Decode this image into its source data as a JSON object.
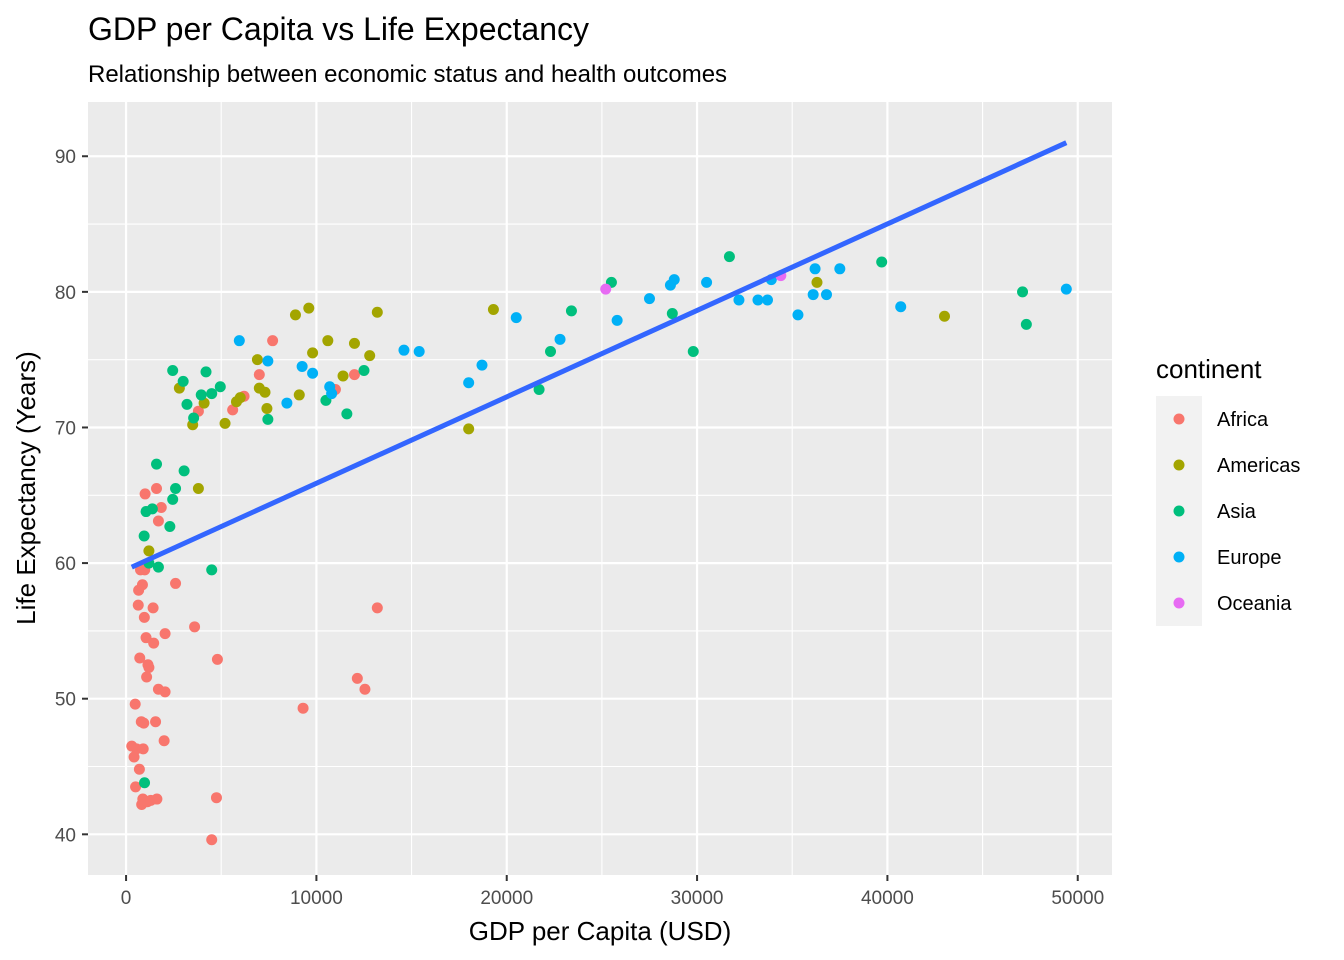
{
  "chart_data": {
    "type": "scatter",
    "title": "GDP per Capita vs Life Expectancy",
    "subtitle": "Relationship between economic status and health outcomes",
    "xlabel": "GDP per Capita (USD)",
    "ylabel": "Life Expectancy (Years)",
    "xlim": [
      -2000,
      51800
    ],
    "ylim": [
      37,
      94
    ],
    "x_ticks": [
      0,
      10000,
      20000,
      30000,
      40000,
      50000
    ],
    "y_ticks": [
      40,
      50,
      60,
      70,
      80,
      90
    ],
    "grid": true,
    "legend": {
      "title": "continent",
      "placement": "right",
      "entries": [
        {
          "name": "Africa",
          "color": "#F8766D"
        },
        {
          "name": "Americas",
          "color": "#A3A500"
        },
        {
          "name": "Asia",
          "color": "#00BF7D"
        },
        {
          "name": "Europe",
          "color": "#00B0F6"
        },
        {
          "name": "Oceania",
          "color": "#E76BF3"
        }
      ]
    },
    "series": [
      {
        "name": "Africa",
        "color": "#F8766D",
        "points": [
          [
            300,
            46.5
          ],
          [
            420,
            45.7
          ],
          [
            480,
            49.6
          ],
          [
            500,
            43.5
          ],
          [
            550,
            46.3
          ],
          [
            640,
            56.9
          ],
          [
            660,
            58.0
          ],
          [
            700,
            44.8
          ],
          [
            720,
            53.0
          ],
          [
            760,
            59.5
          ],
          [
            800,
            48.3
          ],
          [
            820,
            42.2
          ],
          [
            860,
            58.4
          ],
          [
            880,
            42.6
          ],
          [
            900,
            46.3
          ],
          [
            930,
            48.2
          ],
          [
            960,
            56.0
          ],
          [
            980,
            59.5
          ],
          [
            1000,
            65.1
          ],
          [
            1050,
            54.5
          ],
          [
            1080,
            51.6
          ],
          [
            1120,
            42.4
          ],
          [
            1150,
            52.5
          ],
          [
            1200,
            52.3
          ],
          [
            1300,
            42.5
          ],
          [
            1420,
            56.7
          ],
          [
            1450,
            54.1
          ],
          [
            1550,
            48.3
          ],
          [
            1600,
            65.5
          ],
          [
            1620,
            42.6
          ],
          [
            1700,
            50.7
          ],
          [
            1700,
            63.1
          ],
          [
            1850,
            64.1
          ],
          [
            2000,
            46.9
          ],
          [
            2050,
            54.8
          ],
          [
            2050,
            50.5
          ],
          [
            2600,
            58.5
          ],
          [
            3600,
            55.3
          ],
          [
            3800,
            71.2
          ],
          [
            4500,
            39.6
          ],
          [
            4750,
            42.7
          ],
          [
            4800,
            52.9
          ],
          [
            5600,
            71.3
          ],
          [
            6200,
            72.3
          ],
          [
            7000,
            73.9
          ],
          [
            7700,
            76.4
          ],
          [
            9300,
            49.3
          ],
          [
            11000,
            72.8
          ],
          [
            12000,
            73.9
          ],
          [
            12150,
            51.5
          ],
          [
            12550,
            50.7
          ],
          [
            13200,
            56.7
          ]
        ]
      },
      {
        "name": "Americas",
        "color": "#A3A500",
        "points": [
          [
            1200,
            60.9
          ],
          [
            2800,
            72.9
          ],
          [
            3500,
            70.2
          ],
          [
            3800,
            65.5
          ],
          [
            4100,
            71.8
          ],
          [
            5200,
            70.3
          ],
          [
            5800,
            71.9
          ],
          [
            6000,
            72.2
          ],
          [
            6900,
            75.0
          ],
          [
            7000,
            72.9
          ],
          [
            7300,
            72.6
          ],
          [
            7400,
            71.4
          ],
          [
            8900,
            78.3
          ],
          [
            9100,
            72.4
          ],
          [
            9600,
            78.8
          ],
          [
            9800,
            75.5
          ],
          [
            10600,
            76.4
          ],
          [
            11400,
            73.8
          ],
          [
            12000,
            76.2
          ],
          [
            12800,
            75.3
          ],
          [
            13200,
            78.5
          ],
          [
            18000,
            69.9
          ],
          [
            19300,
            78.7
          ],
          [
            36300,
            80.7
          ],
          [
            43000,
            78.2
          ]
        ]
      },
      {
        "name": "Asia",
        "color": "#00BF7D",
        "points": [
          [
            970,
            43.8
          ],
          [
            950,
            62.0
          ],
          [
            1050,
            63.8
          ],
          [
            1200,
            60.0
          ],
          [
            1380,
            64.0
          ],
          [
            1600,
            67.3
          ],
          [
            1700,
            59.7
          ],
          [
            2300,
            62.7
          ],
          [
            2450,
            64.7
          ],
          [
            2450,
            74.2
          ],
          [
            2600,
            65.5
          ],
          [
            3000,
            73.4
          ],
          [
            3050,
            66.8
          ],
          [
            3200,
            71.7
          ],
          [
            3550,
            70.7
          ],
          [
            3950,
            72.4
          ],
          [
            4200,
            74.1
          ],
          [
            4500,
            59.5
          ],
          [
            4500,
            72.5
          ],
          [
            4950,
            73.0
          ],
          [
            7450,
            70.6
          ],
          [
            10500,
            72.0
          ],
          [
            11600,
            71.0
          ],
          [
            12500,
            74.2
          ],
          [
            21700,
            72.8
          ],
          [
            22300,
            75.6
          ],
          [
            23400,
            78.6
          ],
          [
            25500,
            80.7
          ],
          [
            28700,
            78.4
          ],
          [
            29800,
            75.6
          ],
          [
            31700,
            82.6
          ],
          [
            39700,
            82.2
          ],
          [
            47100,
            80.0
          ],
          [
            47300,
            77.6
          ]
        ]
      },
      {
        "name": "Europe",
        "color": "#00B0F6",
        "points": [
          [
            5950,
            76.4
          ],
          [
            7450,
            74.9
          ],
          [
            8450,
            71.8
          ],
          [
            9250,
            74.5
          ],
          [
            9800,
            74.0
          ],
          [
            10700,
            73.0
          ],
          [
            10800,
            72.5
          ],
          [
            14600,
            75.7
          ],
          [
            15400,
            75.6
          ],
          [
            18000,
            73.3
          ],
          [
            18700,
            74.6
          ],
          [
            20500,
            78.1
          ],
          [
            22800,
            76.5
          ],
          [
            25800,
            77.9
          ],
          [
            27500,
            79.5
          ],
          [
            28600,
            80.5
          ],
          [
            28800,
            80.9
          ],
          [
            30500,
            80.7
          ],
          [
            32200,
            79.4
          ],
          [
            33200,
            79.4
          ],
          [
            33700,
            79.4
          ],
          [
            33900,
            80.9
          ],
          [
            35300,
            78.3
          ],
          [
            36100,
            79.8
          ],
          [
            36200,
            81.7
          ],
          [
            36800,
            79.8
          ],
          [
            37500,
            81.7
          ],
          [
            40700,
            78.9
          ],
          [
            49400,
            80.2
          ]
        ]
      },
      {
        "name": "Oceania",
        "color": "#E76BF3",
        "points": [
          [
            25200,
            80.2
          ],
          [
            34400,
            81.2
          ]
        ]
      }
    ],
    "trend_line": {
      "color": "#3366FF",
      "points": [
        [
          300,
          59.7
        ],
        [
          49400,
          91.0
        ]
      ]
    }
  }
}
